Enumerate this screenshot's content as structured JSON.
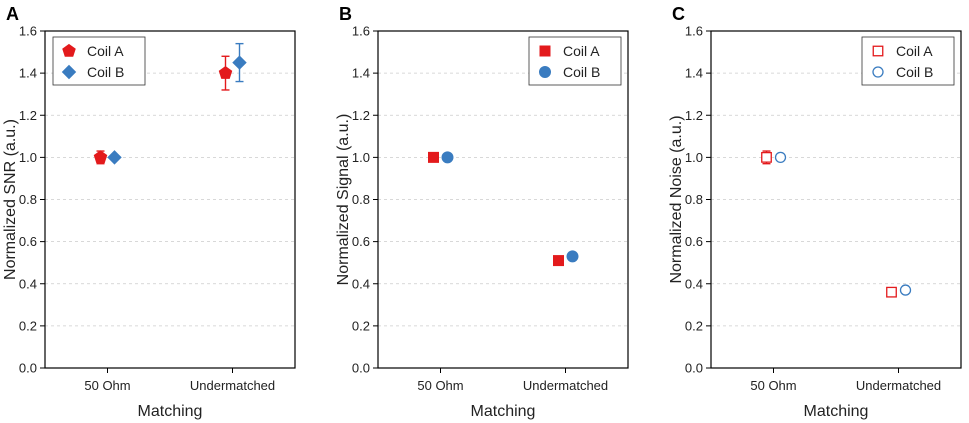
{
  "colors": {
    "coil_a": "#e31a1c",
    "coil_b": "#3a7cc0",
    "grid": "#cccccc",
    "axis": "#000000"
  },
  "chart_data": [
    {
      "panel": "A",
      "type": "scatter",
      "xlabel": "Matching",
      "ylabel": "Normalized SNR (a.u.)",
      "categories": [
        "50 Ohm",
        "Undermatched"
      ],
      "ylim": [
        0.0,
        1.6
      ],
      "yticks": [
        "0.0",
        "0.2",
        "0.4",
        "0.6",
        "0.8",
        "1.0",
        "1.2",
        "1.4",
        "1.6"
      ],
      "grid": "horizontal dashed",
      "legend_position": "top-left",
      "series": [
        {
          "name": "Coil A",
          "marker": "pentagon",
          "filled": true,
          "color": "coil_a",
          "values": [
            1.0,
            1.4
          ],
          "errors": [
            0.03,
            0.08
          ]
        },
        {
          "name": "Coil B",
          "marker": "diamond",
          "filled": true,
          "color": "coil_b",
          "values": [
            1.0,
            1.45
          ],
          "errors": [
            0.0,
            0.09
          ]
        }
      ]
    },
    {
      "panel": "B",
      "type": "scatter",
      "xlabel": "Matching",
      "ylabel": "Normalized Signal (a.u.)",
      "categories": [
        "50 Ohm",
        "Undermatched"
      ],
      "ylim": [
        0.0,
        1.6
      ],
      "yticks": [
        "0.0",
        "0.2",
        "0.4",
        "0.6",
        "0.8",
        "1.0",
        "1.2",
        "1.4",
        "1.6"
      ],
      "grid": "horizontal dashed",
      "legend_position": "top-right",
      "series": [
        {
          "name": "Coil A",
          "marker": "square",
          "filled": true,
          "color": "coil_a",
          "values": [
            1.0,
            0.51
          ],
          "errors": [
            0.0,
            0.0
          ]
        },
        {
          "name": "Coil B",
          "marker": "circle",
          "filled": true,
          "color": "coil_b",
          "values": [
            1.0,
            0.53
          ],
          "errors": [
            0.0,
            0.0
          ]
        }
      ]
    },
    {
      "panel": "C",
      "type": "scatter",
      "xlabel": "Matching",
      "ylabel": "Normalized Noise (a.u.)",
      "categories": [
        "50 Ohm",
        "Undermatched"
      ],
      "ylim": [
        0.0,
        1.6
      ],
      "yticks": [
        "0.0",
        "0.2",
        "0.4",
        "0.6",
        "0.8",
        "1.0",
        "1.2",
        "1.4",
        "1.6"
      ],
      "grid": "horizontal dashed",
      "legend_position": "top-right",
      "series": [
        {
          "name": "Coil A",
          "marker": "square",
          "filled": false,
          "color": "coil_a",
          "values": [
            1.0,
            0.36
          ],
          "errors": [
            0.03,
            0.01
          ]
        },
        {
          "name": "Coil B",
          "marker": "circle",
          "filled": false,
          "color": "coil_b",
          "values": [
            1.0,
            0.37
          ],
          "errors": [
            0.01,
            0.01
          ]
        }
      ]
    }
  ]
}
